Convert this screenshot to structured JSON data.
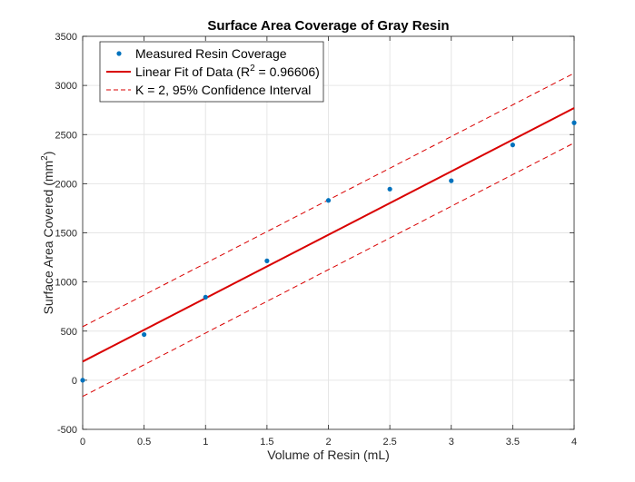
{
  "chart_data": {
    "type": "scatter",
    "title": "Surface Area Coverage of Gray Resin",
    "xlabel": "Volume of Resin (mL)",
    "ylabel": "Surface Area Covered (mm",
    "ylabel_sup": "2",
    "ylabel_end": ")",
    "xlim": [
      0,
      4
    ],
    "ylim": [
      -500,
      3500
    ],
    "xticks": [
      "0",
      "0.5",
      "1",
      "1.5",
      "2",
      "2.5",
      "3",
      "3.5",
      "4"
    ],
    "yticks": [
      "-500",
      "0",
      "500",
      "1000",
      "1500",
      "2000",
      "2500",
      "3000",
      "3500"
    ],
    "grid": true,
    "legend_position": "top-left",
    "series": [
      {
        "name": "Measured Resin Coverage",
        "kind": "points",
        "color": "#0072BD",
        "x": [
          0,
          0.5,
          1,
          1.5,
          2,
          2.5,
          3,
          3.5,
          4
        ],
        "y": [
          0,
          465,
          845,
          1215,
          1830,
          1945,
          2030,
          2395,
          2620
        ]
      },
      {
        "name": "Linear Fit of Data (R",
        "name_sup": "2",
        "name_end": " = 0.96606)",
        "kind": "line",
        "color": "#D90000",
        "x": [
          0,
          4
        ],
        "y": [
          190,
          2770
        ]
      },
      {
        "name": "K = 2, 95% Confidence Interval",
        "kind": "dashed",
        "color": "#D90000",
        "x": [
          0,
          4
        ],
        "y_upper": [
          545,
          3125
        ],
        "y_lower": [
          -165,
          2415
        ]
      }
    ]
  }
}
